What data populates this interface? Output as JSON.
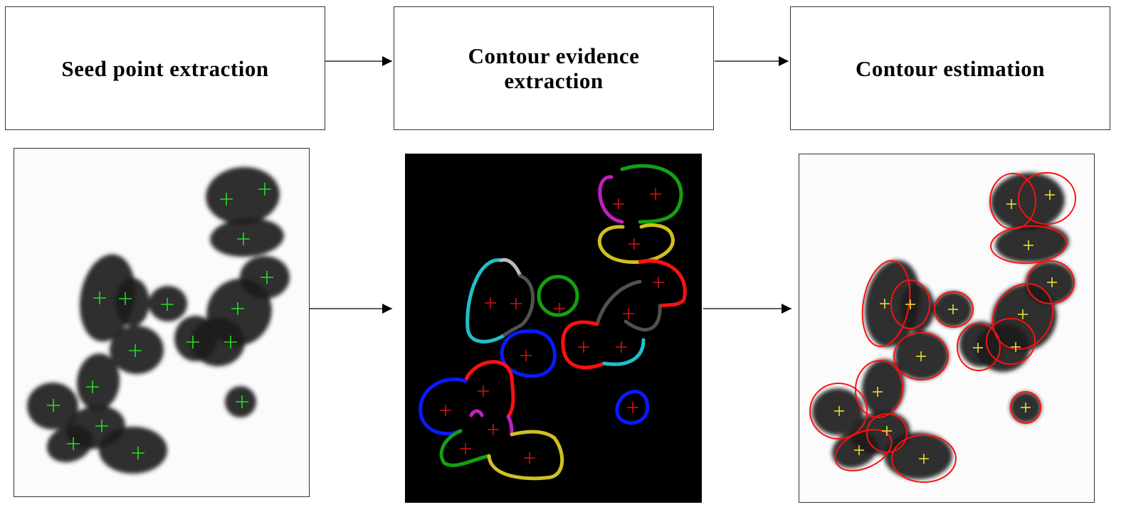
{
  "stages": [
    {
      "label": "Seed point extraction"
    },
    {
      "label": "Contour evidence\nextraction"
    },
    {
      "label": "Contour estimation"
    }
  ],
  "colors": {
    "box_border": "#333333",
    "arrow": "#000000",
    "blob": "#1e1e1e",
    "seed_marker_panel1": "#22dd22",
    "seed_marker_panel2": "#cc1111",
    "seed_marker_panel3": "#e8e030",
    "ellipse": "#ff1010",
    "panel2_background": "#000000",
    "contour_palette": [
      "#ff1010",
      "#0a1aff",
      "#13a013",
      "#d0c020",
      "#20c0c8",
      "#c020c0",
      "#505050",
      "#bbbbbb"
    ]
  }
}
